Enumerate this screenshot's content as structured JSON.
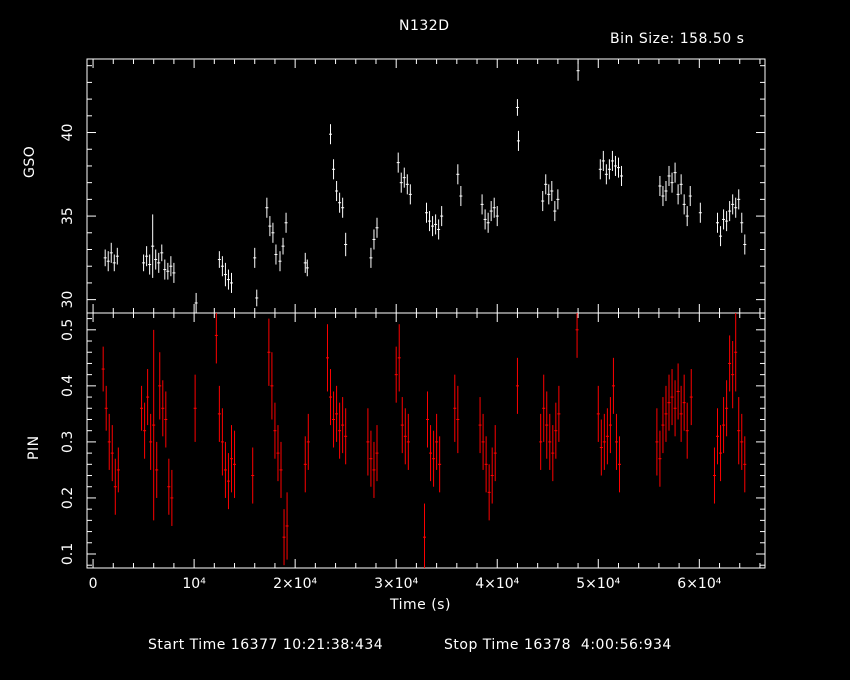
{
  "chart_data": [
    {
      "type": "scatter",
      "panel": "top",
      "ylabel": "GSO",
      "ylim": [
        29.2,
        44.4
      ],
      "yticks": [
        30,
        35,
        40
      ],
      "xlim": [
        -600,
        66500
      ],
      "color": "#ffffff",
      "series": [
        {
          "x": [
            1200,
            1500,
            1800,
            2100,
            2400,
            5000,
            5300,
            5600,
            5900,
            6200,
            6500,
            6800,
            7100,
            7400,
            7700,
            8000,
            10200,
            12500,
            12800,
            13100,
            13400,
            13700,
            16000,
            16200,
            17200,
            17500,
            17800,
            18100,
            18500,
            18800,
            19100,
            21000,
            21200,
            23500,
            23800,
            24100,
            24400,
            24700,
            25000,
            27500,
            27800,
            28100,
            30200,
            30500,
            30800,
            31100,
            31400,
            33000,
            33300,
            33600,
            33900,
            34200,
            34500,
            36100,
            36400,
            38500,
            38800,
            39100,
            39400,
            39700,
            40000,
            42000,
            42100,
            44500,
            44800,
            45100,
            45400,
            45700,
            46000,
            48000,
            50200,
            50500,
            50800,
            51100,
            51400,
            51700,
            52000,
            52300,
            56100,
            56400,
            56700,
            57000,
            57300,
            57600,
            57900,
            58200,
            58500,
            58800,
            59100,
            60100,
            61800,
            62100,
            62400,
            62700,
            63000,
            63300,
            63600,
            63900,
            64200,
            64500
          ],
          "y": [
            32.5,
            32.3,
            32.8,
            32.2,
            32.6,
            32.2,
            32.6,
            32.1,
            33.2,
            32.4,
            32.2,
            32.8,
            31.8,
            31.7,
            32.0,
            31.6,
            29.8,
            32.4,
            32.0,
            31.5,
            31.2,
            31.0,
            32.5,
            30.1,
            35.5,
            34.4,
            34.0,
            32.7,
            32.3,
            33.2,
            34.6,
            32.2,
            31.9,
            39.9,
            37.8,
            36.5,
            35.8,
            35.5,
            33.3,
            32.5,
            33.6,
            34.3,
            38.2,
            37.0,
            37.3,
            36.9,
            36.3,
            35.2,
            34.7,
            34.4,
            34.5,
            34.2,
            35.0,
            37.5,
            36.2,
            35.7,
            34.8,
            34.6,
            35.3,
            35.5,
            35.0,
            41.5,
            39.5,
            35.9,
            36.9,
            36.3,
            36.5,
            35.3,
            36.0,
            43.7,
            37.8,
            38.3,
            37.5,
            37.8,
            38.3,
            38.0,
            37.9,
            37.4,
            36.8,
            36.2,
            36.5,
            37.4,
            37.0,
            37.6,
            36.3,
            36.9,
            35.7,
            35.0,
            36.2,
            35.2,
            34.6,
            33.8,
            34.8,
            34.7,
            35.3,
            35.7,
            35.5,
            36.0,
            34.6,
            33.3
          ],
          "err": [
            0.5,
            0.6,
            0.6,
            0.5,
            0.5,
            0.5,
            0.6,
            0.6,
            1.9,
            0.6,
            0.6,
            0.5,
            0.6,
            0.5,
            0.6,
            0.6,
            0.6,
            0.5,
            0.6,
            0.7,
            0.6,
            0.6,
            0.6,
            0.5,
            0.6,
            0.6,
            0.6,
            0.6,
            0.6,
            0.5,
            0.6,
            0.6,
            0.5,
            0.6,
            0.6,
            0.6,
            0.6,
            0.6,
            0.7,
            0.6,
            0.6,
            0.6,
            0.6,
            0.6,
            0.6,
            0.6,
            0.6,
            0.6,
            0.6,
            0.6,
            0.6,
            0.6,
            0.6,
            0.6,
            0.6,
            0.6,
            0.6,
            0.6,
            0.6,
            0.6,
            0.6,
            0.5,
            0.6,
            0.6,
            0.6,
            0.6,
            0.6,
            0.6,
            0.6,
            0.6,
            0.6,
            0.6,
            0.6,
            0.6,
            0.6,
            0.6,
            0.6,
            0.6,
            0.6,
            0.6,
            0.6,
            0.6,
            0.6,
            0.6,
            0.6,
            0.6,
            0.6,
            0.6,
            0.6,
            0.6,
            0.6,
            0.6,
            0.6,
            0.6,
            0.6,
            0.6,
            0.6,
            0.6,
            0.6,
            0.6
          ]
        }
      ]
    },
    {
      "type": "scatter",
      "panel": "bottom",
      "ylabel": "PIN",
      "ylim": [
        0.075,
        0.53
      ],
      "yticks": [
        0.1,
        0.2,
        0.3,
        0.4,
        0.5
      ],
      "xlim": [
        -600,
        66500
      ],
      "xlabel": "Time (s)",
      "xticks": [
        0,
        10000,
        20000,
        30000,
        40000,
        50000,
        60000
      ],
      "xticklabels": [
        "0",
        "10⁴",
        "2×10⁴",
        "3×10⁴",
        "4×10⁴",
        "5×10⁴",
        "6×10⁴"
      ],
      "color": "#ff0000",
      "series": [
        {
          "x": [
            1000,
            1300,
            1600,
            1900,
            2200,
            2500,
            4800,
            5100,
            5400,
            5700,
            6000,
            6300,
            6600,
            6900,
            7200,
            7500,
            7800,
            10100,
            12200,
            12500,
            12800,
            13100,
            13400,
            13700,
            14000,
            15800,
            17400,
            17700,
            18000,
            18300,
            18600,
            18900,
            19200,
            21000,
            21300,
            23200,
            23500,
            23800,
            24100,
            24400,
            24700,
            25000,
            27200,
            27500,
            27800,
            28100,
            30000,
            30300,
            30600,
            30900,
            31200,
            32800,
            33100,
            33400,
            33700,
            34000,
            34300,
            35800,
            36100,
            38300,
            38600,
            38900,
            39200,
            39500,
            39800,
            42000,
            44300,
            44600,
            44900,
            45200,
            45500,
            45800,
            46100,
            47900,
            50000,
            50300,
            50600,
            50900,
            51200,
            51500,
            51800,
            52100,
            55800,
            56100,
            56400,
            56700,
            57000,
            57300,
            57600,
            57900,
            58200,
            58500,
            58800,
            59200,
            61500,
            61800,
            62100,
            62400,
            62700,
            63000,
            63300,
            63600,
            63900,
            64200,
            64500
          ],
          "y": [
            0.43,
            0.36,
            0.3,
            0.28,
            0.22,
            0.25,
            0.36,
            0.32,
            0.38,
            0.3,
            0.33,
            0.25,
            0.4,
            0.36,
            0.34,
            0.22,
            0.2,
            0.36,
            0.49,
            0.35,
            0.3,
            0.25,
            0.23,
            0.27,
            0.26,
            0.24,
            0.46,
            0.4,
            0.32,
            0.28,
            0.25,
            0.13,
            0.15,
            0.26,
            0.3,
            0.45,
            0.38,
            0.34,
            0.35,
            0.32,
            0.33,
            0.31,
            0.3,
            0.27,
            0.25,
            0.28,
            0.42,
            0.45,
            0.33,
            0.31,
            0.3,
            0.13,
            0.34,
            0.28,
            0.27,
            0.3,
            0.26,
            0.36,
            0.34,
            0.33,
            0.3,
            0.26,
            0.21,
            0.24,
            0.28,
            0.4,
            0.3,
            0.36,
            0.33,
            0.3,
            0.28,
            0.32,
            0.35,
            0.5,
            0.35,
            0.29,
            0.3,
            0.31,
            0.33,
            0.4,
            0.3,
            0.26,
            0.3,
            0.27,
            0.33,
            0.35,
            0.37,
            0.38,
            0.36,
            0.39,
            0.35,
            0.37,
            0.32,
            0.38,
            0.24,
            0.31,
            0.28,
            0.33,
            0.36,
            0.44,
            0.42,
            0.46,
            0.32,
            0.3,
            0.26
          ],
          "err": [
            0.04,
            0.04,
            0.05,
            0.05,
            0.05,
            0.04,
            0.04,
            0.05,
            0.05,
            0.05,
            0.17,
            0.05,
            0.06,
            0.05,
            0.05,
            0.05,
            0.05,
            0.06,
            0.05,
            0.05,
            0.06,
            0.05,
            0.05,
            0.06,
            0.06,
            0.05,
            0.06,
            0.06,
            0.05,
            0.05,
            0.05,
            0.05,
            0.06,
            0.05,
            0.05,
            0.06,
            0.05,
            0.05,
            0.05,
            0.05,
            0.05,
            0.05,
            0.06,
            0.05,
            0.05,
            0.05,
            0.05,
            0.06,
            0.05,
            0.05,
            0.05,
            0.06,
            0.05,
            0.05,
            0.05,
            0.05,
            0.05,
            0.06,
            0.06,
            0.05,
            0.05,
            0.05,
            0.05,
            0.05,
            0.05,
            0.05,
            0.05,
            0.06,
            0.06,
            0.05,
            0.05,
            0.05,
            0.05,
            0.05,
            0.05,
            0.05,
            0.05,
            0.05,
            0.05,
            0.05,
            0.05,
            0.05,
            0.06,
            0.05,
            0.05,
            0.05,
            0.05,
            0.05,
            0.05,
            0.05,
            0.05,
            0.05,
            0.05,
            0.05,
            0.05,
            0.05,
            0.05,
            0.05,
            0.05,
            0.05,
            0.06,
            0.07,
            0.06,
            0.05,
            0.05
          ]
        }
      ]
    }
  ],
  "header": {
    "title": "N132D",
    "bin_size": "Bin Size: 158.50 s"
  },
  "footer": {
    "start_time": "Start Time 16377 10:21:38:434",
    "stop_time": "Stop Time 16378  4:00:56:934"
  }
}
